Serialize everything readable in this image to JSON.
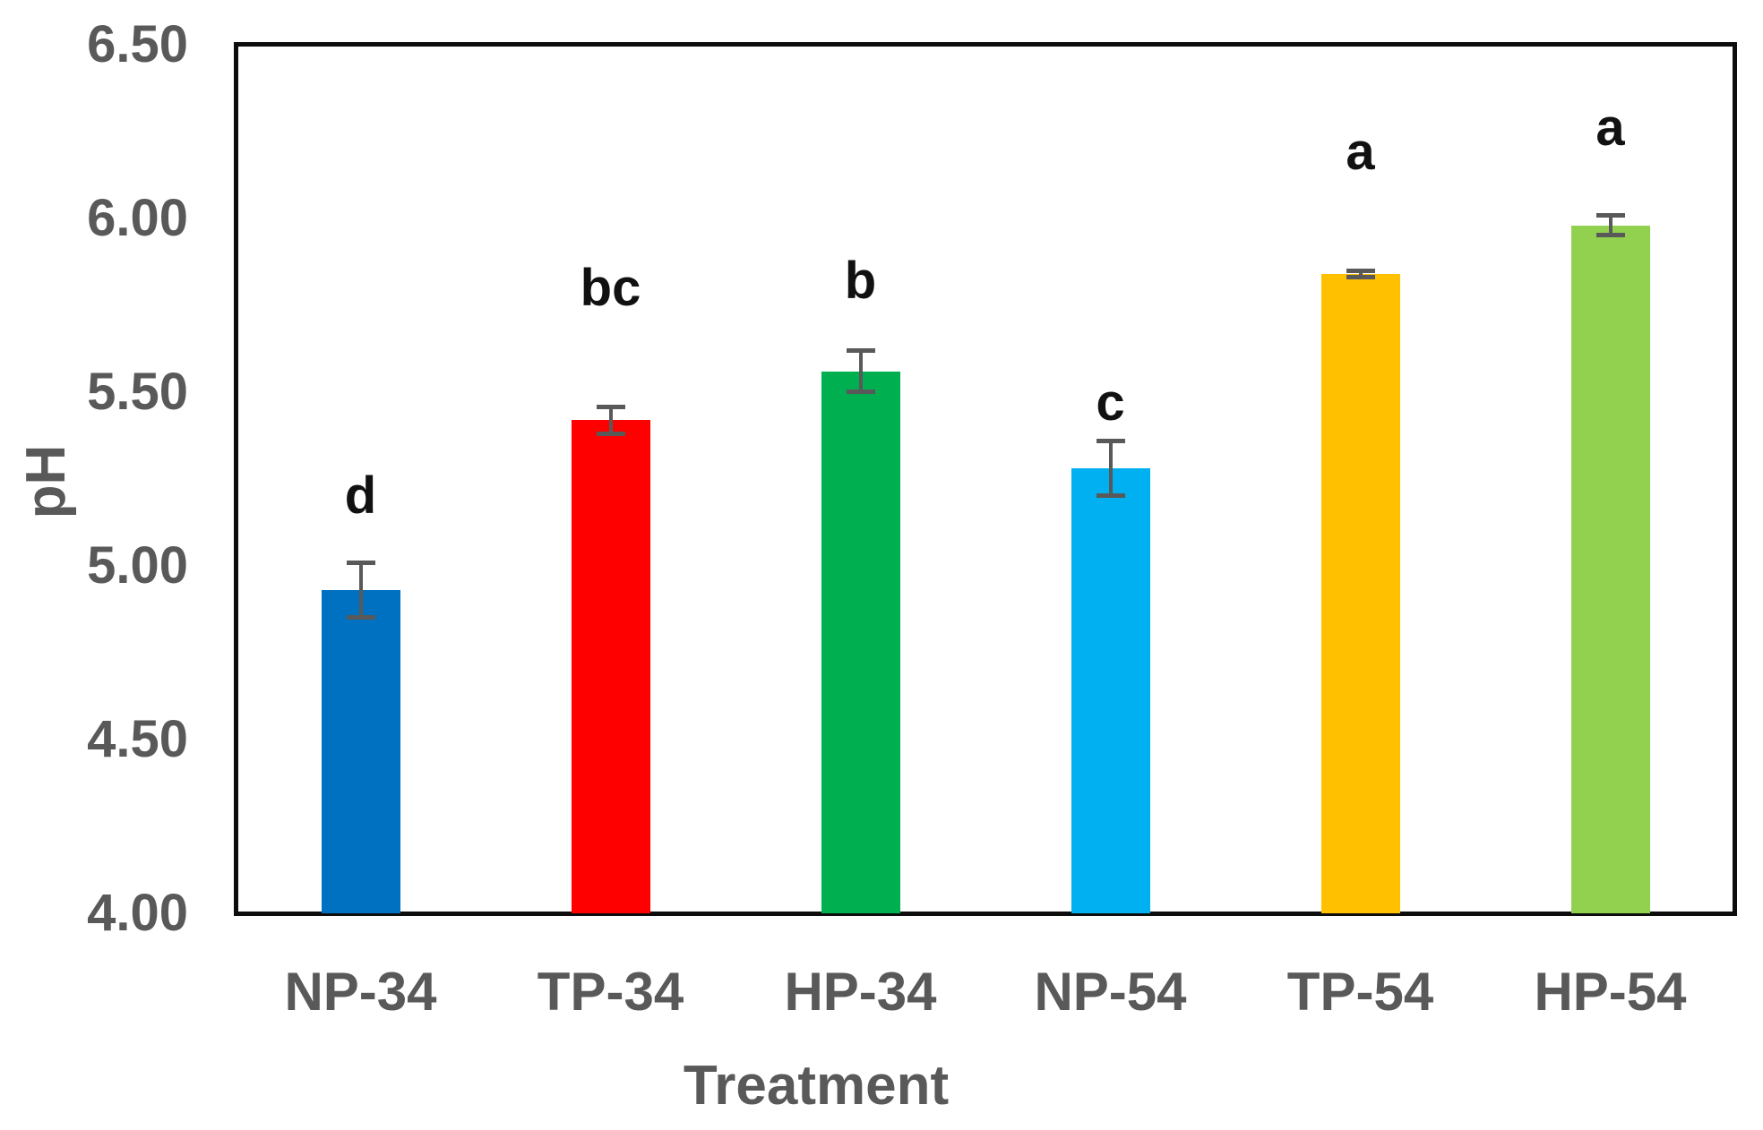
{
  "chart_data": {
    "type": "bar",
    "title": "",
    "xlabel": "Treatment",
    "ylabel": "pH",
    "ylim": [
      4.0,
      6.5
    ],
    "ytick_step": 0.5,
    "yticks": [
      {
        "value": 4.0,
        "label": "4.00"
      },
      {
        "value": 4.5,
        "label": "4.50"
      },
      {
        "value": 5.0,
        "label": "5.00"
      },
      {
        "value": 5.5,
        "label": "5.50"
      },
      {
        "value": 6.0,
        "label": "6.00"
      },
      {
        "value": 6.5,
        "label": "6.50"
      }
    ],
    "categories": [
      "NP-34",
      "TP-34",
      "HP-34",
      "NP-54",
      "TP-54",
      "HP-54"
    ],
    "series": [
      {
        "name": "pH",
        "values": [
          4.93,
          5.42,
          5.56,
          5.28,
          5.84,
          5.98
        ],
        "errors": [
          0.08,
          0.04,
          0.06,
          0.08,
          0.01,
          0.03
        ]
      }
    ],
    "significance_letters": [
      "d",
      "bc",
      "b",
      "c",
      "a",
      "a"
    ],
    "significance_letter_y": [
      5.2,
      5.8,
      5.82,
      5.47,
      6.19,
      6.26
    ],
    "bar_colors": [
      "#0070C0",
      "#FF0000",
      "#00B050",
      "#00B0F0",
      "#FFC000",
      "#92D050"
    ],
    "error_bar_color": "#595959",
    "axis_text_color": "#595959",
    "letter_color": "#111111",
    "plot_border_color": "#0d0d0d",
    "grid": false,
    "legend": null
  }
}
